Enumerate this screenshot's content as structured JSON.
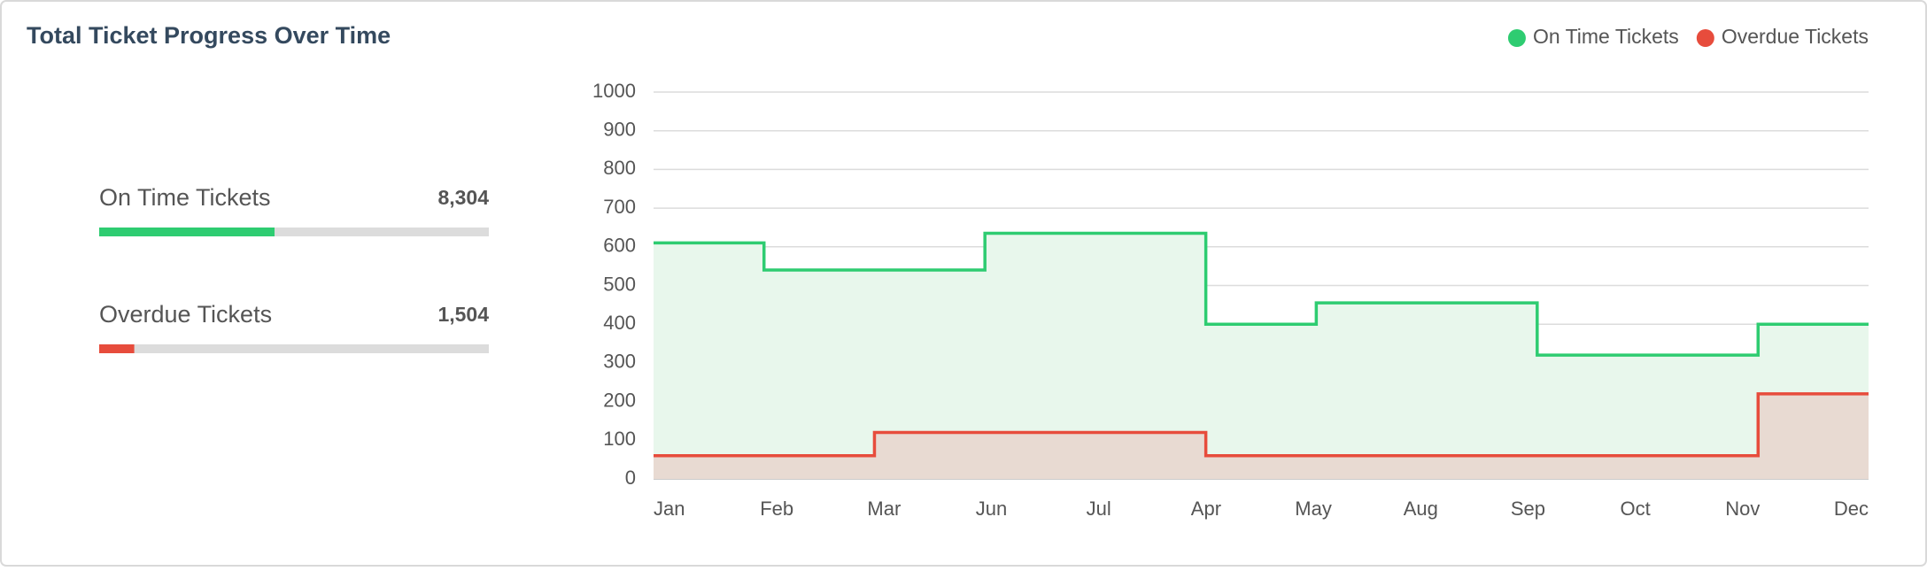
{
  "title": "Total Ticket Progress Over Time",
  "summary": [
    {
      "label": "On Time Tickets",
      "value": 8304,
      "value_label": "8,304",
      "progress": 45,
      "color": "#2ecc71"
    },
    {
      "label": "Overdue Tickets",
      "value": 1504,
      "value_label": "1,504",
      "progress": 9,
      "color": "#e74c3c"
    }
  ],
  "chart_data": {
    "type": "step",
    "categories": [
      "Jan",
      "Feb",
      "Mar",
      "Jun",
      "Jul",
      "Apr",
      "May",
      "Aug",
      "Sep",
      "Oct",
      "Nov",
      "Dec"
    ],
    "series": [
      {
        "name": "On Time Tickets",
        "color": "#2ecc71",
        "area": "#e8f7ec",
        "values": [
          610,
          540,
          540,
          635,
          635,
          400,
          455,
          455,
          320,
          320,
          400,
          400
        ]
      },
      {
        "name": "Overdue Tickets",
        "color": "#e74c3c",
        "area": "#e8dad2",
        "values": [
          60,
          60,
          120,
          120,
          120,
          60,
          60,
          60,
          60,
          60,
          220,
          220
        ]
      }
    ],
    "ylim": [
      0,
      1000
    ],
    "yticks": [
      0,
      100,
      200,
      300,
      400,
      500,
      600,
      700,
      800,
      900,
      1000
    ],
    "grid": true,
    "legend": "top-right"
  }
}
